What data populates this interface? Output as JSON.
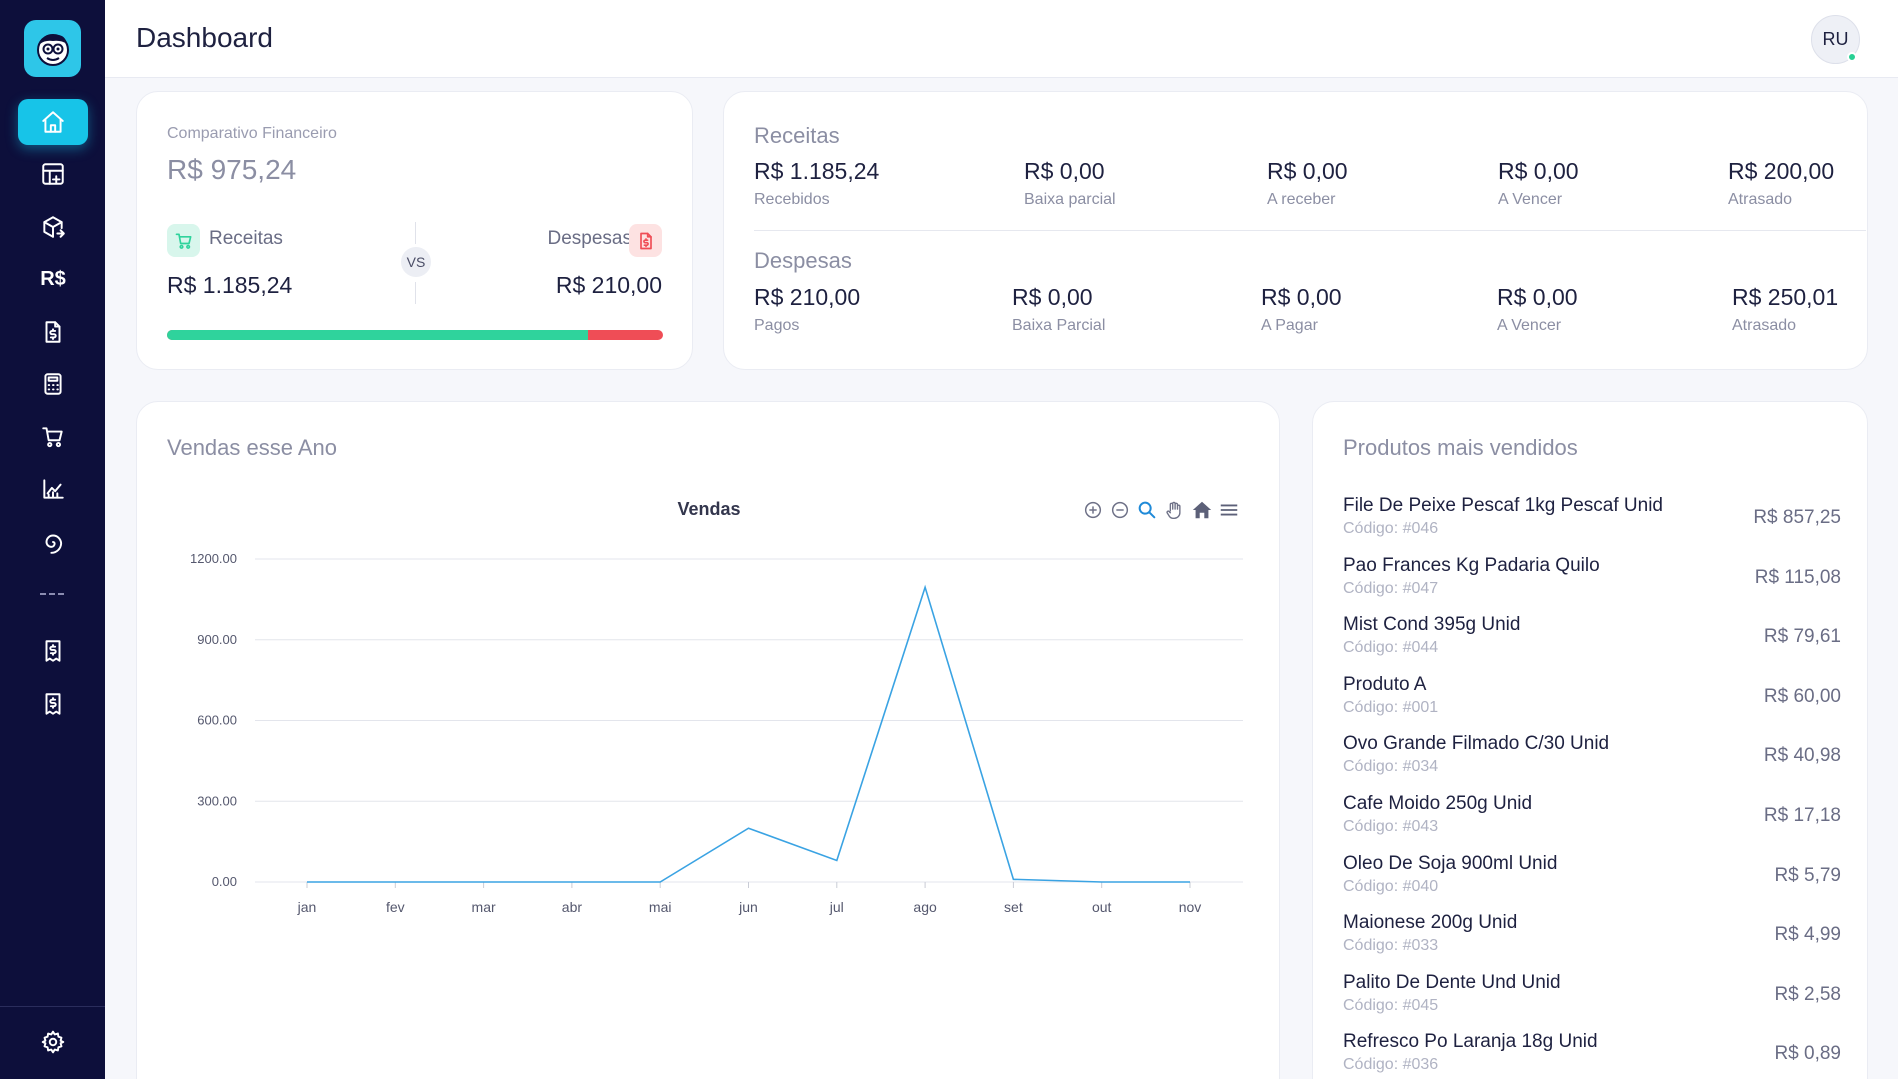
{
  "header": {
    "title": "Dashboard",
    "avatar_initials": "RU"
  },
  "sidebar": {
    "items": [
      {
        "icon": "home-icon",
        "active": true
      },
      {
        "icon": "table-add-icon"
      },
      {
        "icon": "box-arrow-icon"
      },
      {
        "icon": "currency-icon",
        "text": "R$"
      },
      {
        "icon": "invoice-dollar-icon"
      },
      {
        "icon": "calculator-icon"
      },
      {
        "icon": "cart-icon"
      },
      {
        "icon": "chart-icon"
      },
      {
        "icon": "spiral-icon"
      },
      {
        "icon": "receipt-icon"
      },
      {
        "icon": "receipt-icon"
      }
    ],
    "bottom_icon": "gear-icon"
  },
  "comparativo": {
    "label": "Comparativo Financeiro",
    "total": "R$ 975,24",
    "receitas_label": "Receitas",
    "receitas_value": "R$ 1.185,24",
    "vs": "VS",
    "despesas_label": "Despesas",
    "despesas_value": "R$ 210,00",
    "receitas_fraction": 0.8495,
    "colors": {
      "receitas": "#2fd39c",
      "despesas": "#ef4d56"
    }
  },
  "resumo": {
    "receitas_title": "Receitas",
    "receitas": [
      {
        "value": "R$ 1.185,24",
        "label": "Recebidos"
      },
      {
        "value": "R$ 0,00",
        "label": "Baixa parcial"
      },
      {
        "value": "R$ 0,00",
        "label": "A receber"
      },
      {
        "value": "R$ 0,00",
        "label": "A Vencer"
      },
      {
        "value": "R$ 200,00",
        "label": "Atrasado"
      }
    ],
    "despesas_title": "Despesas",
    "despesas": [
      {
        "value": "R$ 210,00",
        "label": "Pagos"
      },
      {
        "value": "R$ 0,00",
        "label": "Baixa Parcial"
      },
      {
        "value": "R$ 0,00",
        "label": "A Pagar"
      },
      {
        "value": "R$ 0,00",
        "label": "A Vencer"
      },
      {
        "value": "R$ 250,01",
        "label": "Atrasado"
      }
    ]
  },
  "vendas": {
    "card_title": "Vendas esse Ano",
    "chart_data": {
      "type": "line",
      "title": "Vendas",
      "categories": [
        "jan",
        "fev",
        "mar",
        "abr",
        "mai",
        "jun",
        "jul",
        "ago",
        "set",
        "out",
        "nov"
      ],
      "series": [
        {
          "values": [
            0,
            0,
            0,
            0,
            0,
            200,
            80,
            1095,
            10,
            0,
            0
          ]
        }
      ],
      "yticks": [
        "0.00",
        "300.00",
        "600.00",
        "900.00",
        "1200.00"
      ],
      "ylim": [
        0,
        1200
      ],
      "grid": true,
      "line_color": "#3aa3e3",
      "toolbar": [
        "zoom-in-icon",
        "zoom-out-icon",
        "magnifier-icon",
        "pan-hand-icon",
        "reset-home-icon",
        "menu-icon"
      ]
    }
  },
  "produtos": {
    "title": "Produtos mais vendidos",
    "items": [
      {
        "name": "File De Peixe Pescaf 1kg Pescaf Unid",
        "code": "Código: #046",
        "price": "R$ 857,25"
      },
      {
        "name": "Pao Frances Kg Padaria Quilo",
        "code": "Código: #047",
        "price": "R$ 115,08"
      },
      {
        "name": "Mist Cond 395g Unid",
        "code": "Código: #044",
        "price": "R$ 79,61"
      },
      {
        "name": "Produto A",
        "code": "Código: #001",
        "price": "R$ 60,00"
      },
      {
        "name": "Ovo Grande Filmado C/30 Unid",
        "code": "Código: #034",
        "price": "R$ 40,98"
      },
      {
        "name": "Cafe Moido 250g Unid",
        "code": "Código: #043",
        "price": "R$ 17,18"
      },
      {
        "name": "Oleo De Soja 900ml Unid",
        "code": "Código: #040",
        "price": "R$ 5,79"
      },
      {
        "name": "Maionese 200g Unid",
        "code": "Código: #033",
        "price": "R$ 4,99"
      },
      {
        "name": "Palito De Dente Und Unid",
        "code": "Código: #045",
        "price": "R$ 2,58"
      },
      {
        "name": "Refresco Po Laranja 18g Unid",
        "code": "Código: #036",
        "price": "R$ 0,89"
      }
    ]
  }
}
